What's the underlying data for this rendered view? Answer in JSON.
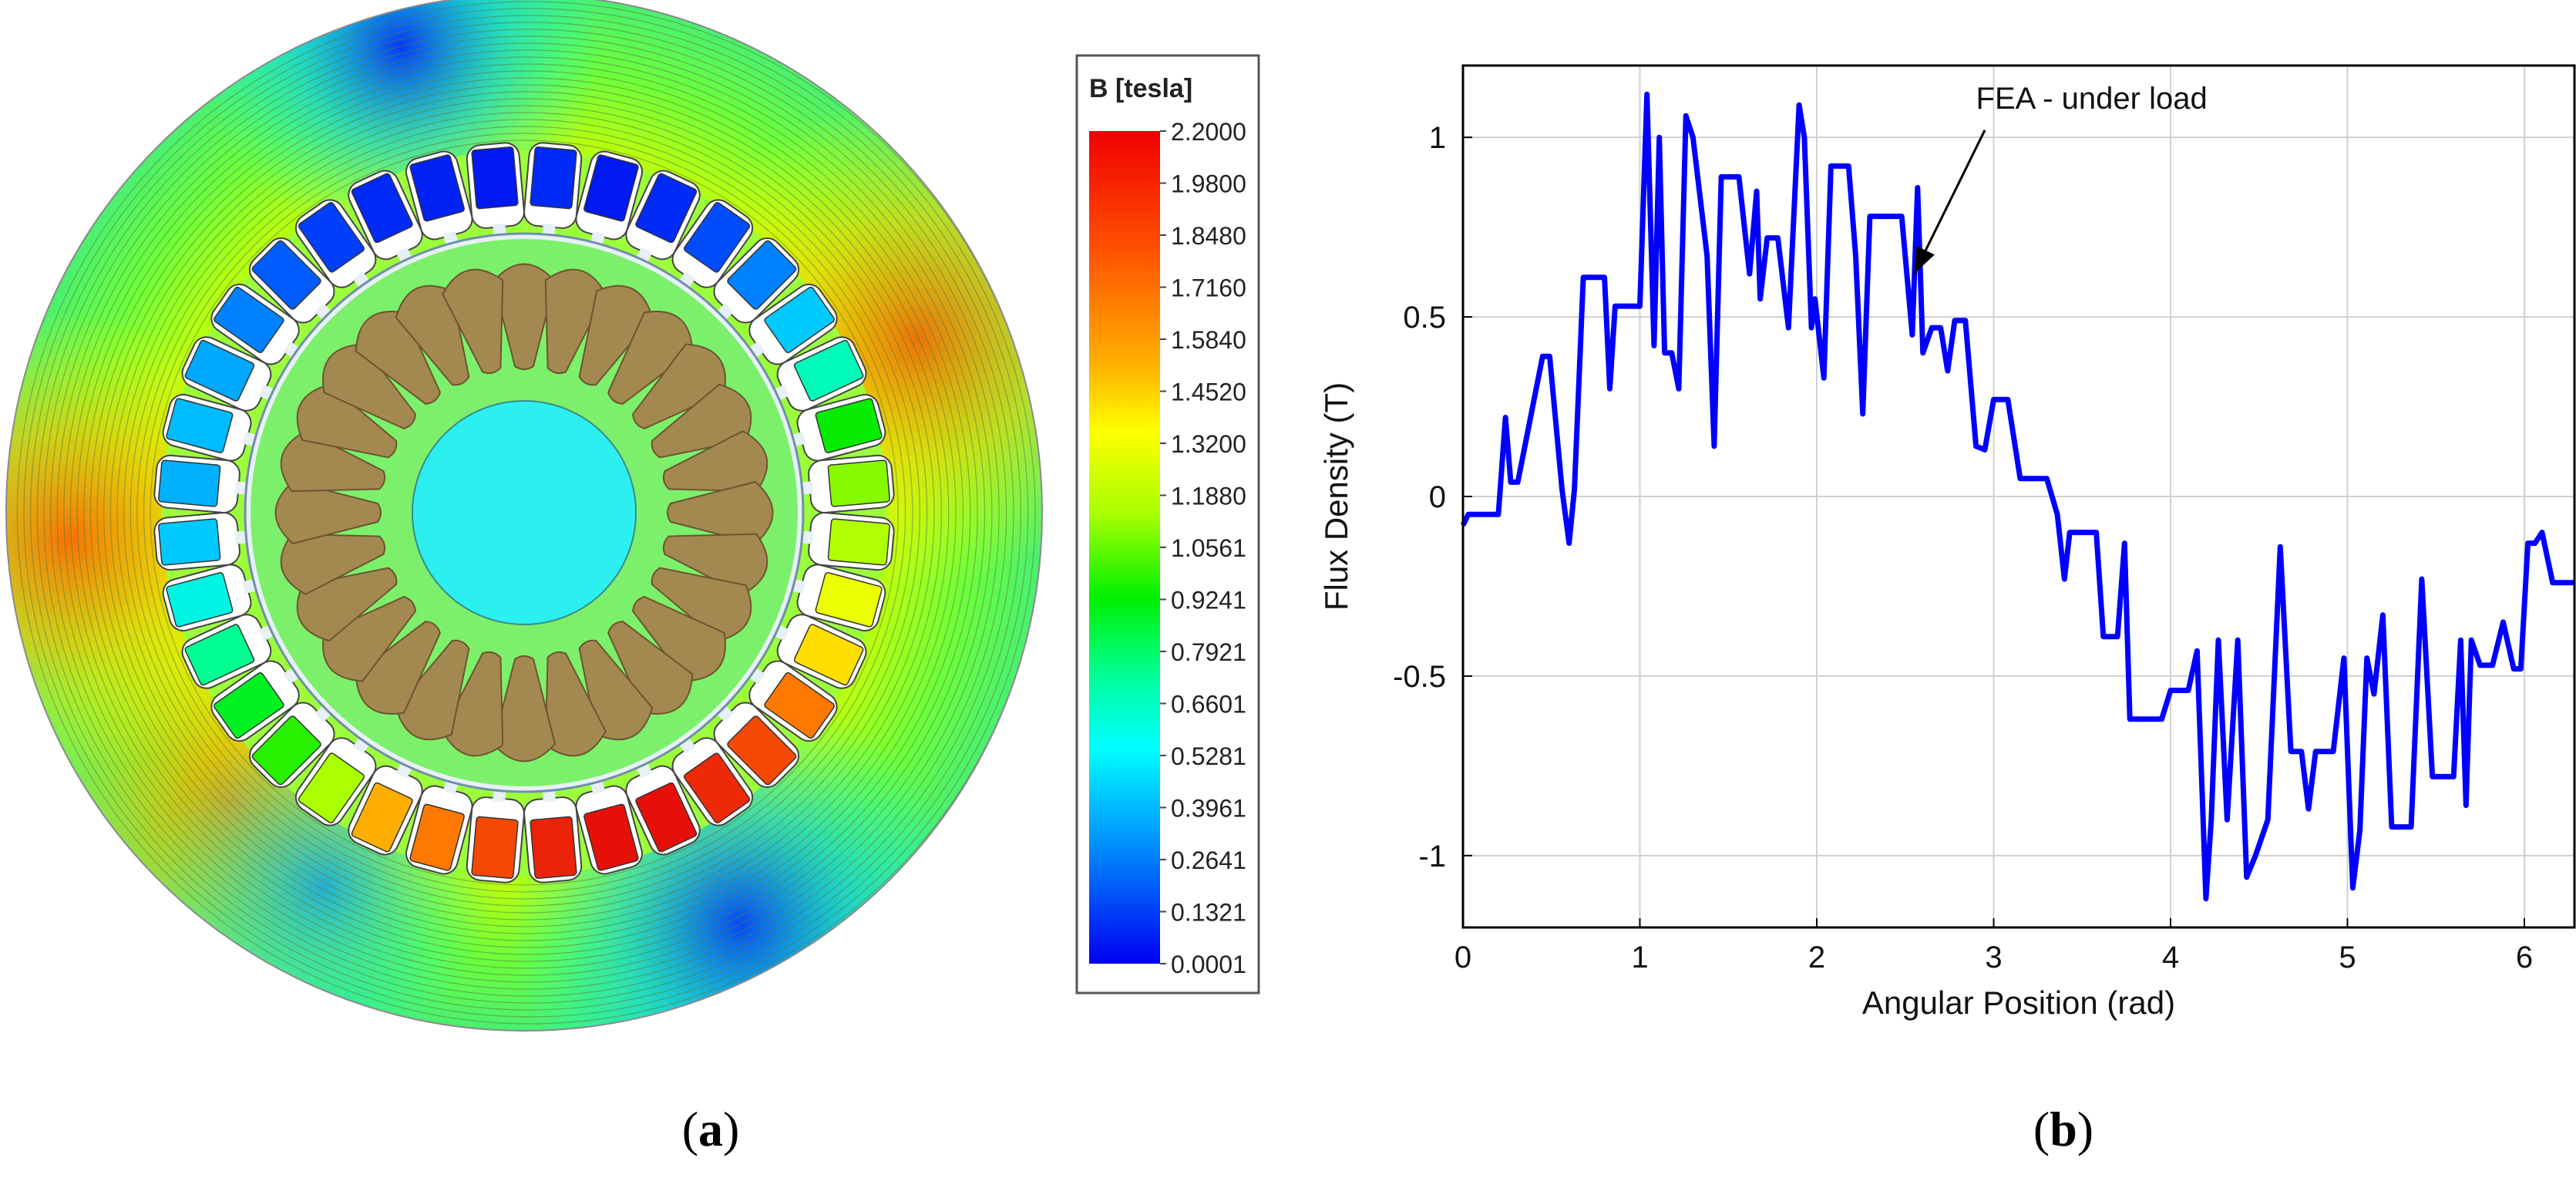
{
  "caption_a": {
    "open": "(",
    "letter": "a",
    "close": ")"
  },
  "caption_b": {
    "open": "(",
    "letter": "b",
    "close": ")"
  },
  "colorbar": {
    "title": "B [tesla]",
    "ticks": [
      "2.2000",
      "1.9800",
      "1.8480",
      "1.7160",
      "1.5840",
      "1.4520",
      "1.3200",
      "1.1880",
      "1.0561",
      "0.9241",
      "0.7921",
      "0.6601",
      "0.5281",
      "0.3961",
      "0.2641",
      "0.1321",
      "0.0001"
    ],
    "colors": [
      "#0014e6",
      "#0046ff",
      "#0a8cff",
      "#14c8ff",
      "#00ffff",
      "#00ffc8",
      "#00ff8c",
      "#28ff3c",
      "#64ff00",
      "#a0ff00",
      "#d2ff00",
      "#fff000",
      "#ffc800",
      "#ff9600",
      "#ff6400",
      "#ff3200",
      "#ff0000"
    ]
  },
  "machine": {
    "stator_slots": 36,
    "rotor_bars": 28,
    "slot_fill_B": [
      0.1,
      0.06,
      0.1,
      0.18,
      0.3,
      0.45,
      0.7,
      1.2,
      1.4,
      1.46,
      1.55,
      1.65,
      1.85,
      2.0,
      2.1,
      2.18,
      2.18,
      2.12,
      2.0,
      1.85,
      1.75,
      1.45,
      1.25,
      1.1,
      0.8,
      0.6,
      0.45,
      0.4,
      0.42,
      0.38,
      0.3,
      0.22,
      0.15,
      0.1,
      0.08,
      0.06
    ]
  },
  "chart_data": {
    "type": "line",
    "title": "",
    "xlabel": "Angular Position (rad)",
    "ylabel": "Flux Density (T)",
    "xlim": [
      0,
      6.2832
    ],
    "ylim": [
      -1.2,
      1.2
    ],
    "grid": true,
    "xticks": [
      0,
      1,
      2,
      3,
      4,
      5,
      6
    ],
    "xtick_labels": [
      "0",
      "1",
      "2",
      "3",
      "4",
      "5",
      "6"
    ],
    "yticks": [
      -1,
      -0.5,
      0,
      0.5,
      1
    ],
    "ytick_labels": [
      "-1",
      "-0.5",
      "0",
      "0.5",
      "1"
    ],
    "annotation": {
      "text": "FEA - under load",
      "x": 2.55,
      "y": 0.62
    },
    "series": [
      {
        "name": "FEA - under load",
        "color": "#0000ff",
        "x": [
          0,
          0.03,
          0.2,
          0.24,
          0.27,
          0.31,
          0.45,
          0.49,
          0.56,
          0.6,
          0.63,
          0.68,
          0.8,
          0.83,
          0.86,
          0.9,
          1.0,
          1.04,
          1.08,
          1.11,
          1.14,
          1.18,
          1.22,
          1.26,
          1.3,
          1.38,
          1.42,
          1.46,
          1.5,
          1.56,
          1.62,
          1.66,
          1.68,
          1.72,
          1.74,
          1.78,
          1.84,
          1.9,
          1.93,
          1.97,
          1.99,
          2.04,
          2.08,
          2.12,
          2.18,
          2.22,
          2.26,
          2.3,
          2.33,
          2.38,
          2.48,
          2.54,
          2.57,
          2.6,
          2.65,
          2.7,
          2.74,
          2.78,
          2.84,
          2.9,
          2.95,
          3.0,
          3.08,
          3.15,
          3.2,
          3.26,
          3.3,
          3.36,
          3.4,
          3.43,
          3.5,
          3.58,
          3.62,
          3.66,
          3.7,
          3.74,
          3.77,
          3.8,
          3.88,
          3.95,
          4.0,
          4.05,
          4.1,
          4.15,
          4.2,
          4.23,
          4.27,
          4.32,
          4.38,
          4.43,
          4.48,
          4.55,
          4.62,
          4.68,
          4.74,
          4.78,
          4.82,
          4.86,
          4.92,
          4.98,
          5.03,
          5.07,
          5.11,
          5.15,
          5.2,
          5.25,
          5.3,
          5.36,
          5.42,
          5.48,
          5.52,
          5.56,
          5.6,
          5.64,
          5.67,
          5.7,
          5.75,
          5.82,
          5.88,
          5.94,
          5.98,
          6.02,
          6.06,
          6.1,
          6.16,
          6.22,
          6.2832
        ],
        "values": [
          -0.08,
          -0.05,
          -0.05,
          0.22,
          0.04,
          0.04,
          0.39,
          0.39,
          0.02,
          -0.13,
          0.02,
          0.61,
          0.61,
          0.3,
          0.53,
          0.53,
          0.53,
          1.12,
          0.42,
          1.0,
          0.4,
          0.4,
          0.3,
          1.06,
          1.0,
          0.67,
          0.14,
          0.89,
          0.89,
          0.89,
          0.62,
          0.85,
          0.55,
          0.72,
          0.72,
          0.72,
          0.47,
          1.09,
          1.0,
          0.47,
          0.55,
          0.33,
          0.92,
          0.92,
          0.92,
          0.67,
          0.23,
          0.78,
          0.78,
          0.78,
          0.78,
          0.45,
          0.86,
          0.4,
          0.47,
          0.47,
          0.35,
          0.49,
          0.49,
          0.14,
          0.13,
          0.27,
          0.27,
          0.05,
          0.05,
          0.05,
          0.05,
          -0.05,
          -0.23,
          -0.1,
          -0.1,
          -0.1,
          -0.39,
          -0.39,
          -0.39,
          -0.13,
          -0.62,
          -0.62,
          -0.62,
          -0.62,
          -0.54,
          -0.54,
          -0.54,
          -0.43,
          -1.12,
          -0.9,
          -0.4,
          -0.9,
          -0.4,
          -1.06,
          -1.0,
          -0.9,
          -0.14,
          -0.71,
          -0.71,
          -0.87,
          -0.71,
          -0.71,
          -0.71,
          -0.45,
          -1.09,
          -0.93,
          -0.45,
          -0.55,
          -0.33,
          -0.92,
          -0.92,
          -0.92,
          -0.23,
          -0.78,
          -0.78,
          -0.78,
          -0.78,
          -0.4,
          -0.86,
          -0.4,
          -0.47,
          -0.47,
          -0.35,
          -0.48,
          -0.48,
          -0.13,
          -0.13,
          -0.1,
          -0.24,
          -0.24,
          -0.24
        ]
      }
    ]
  }
}
